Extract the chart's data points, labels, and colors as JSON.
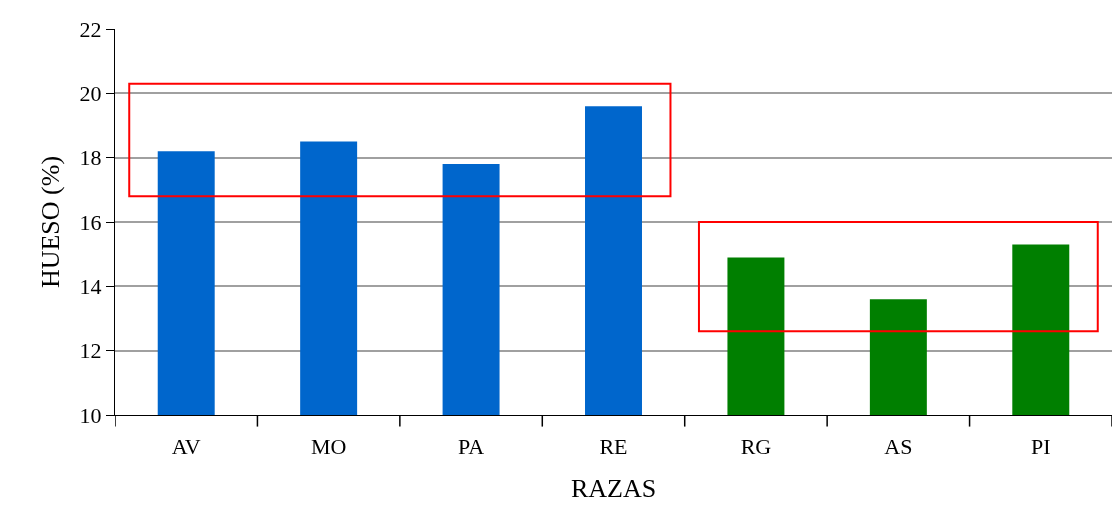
{
  "chart_data": {
    "type": "bar",
    "xlabel": "RAZAS",
    "ylabel": "HUESO (%)",
    "categories": [
      "AV",
      "MO",
      "PA",
      "RE",
      "RG",
      "AS",
      "PI"
    ],
    "values": [
      18.2,
      18.5,
      17.8,
      19.6,
      14.9,
      13.6,
      15.3
    ],
    "colors": [
      "#0066cc",
      "#0066cc",
      "#0066cc",
      "#0066cc",
      "#007f00",
      "#007f00",
      "#007f00"
    ],
    "ylim": [
      10,
      22
    ],
    "yticks": [
      10,
      12,
      14,
      16,
      18,
      20,
      22
    ],
    "grid": "y"
  }
}
